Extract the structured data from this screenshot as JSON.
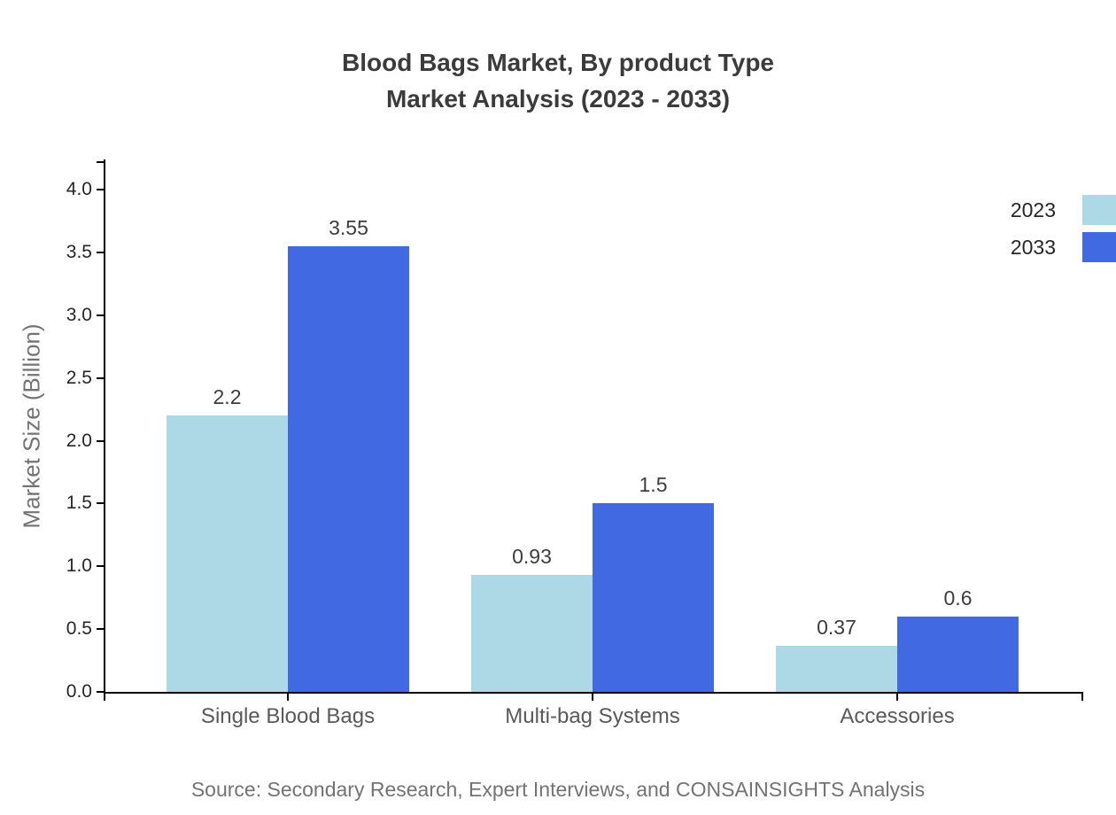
{
  "title": {
    "line1": "Blood Bags Market, By product Type",
    "line2": "Market Analysis (2023 - 2033)"
  },
  "source_note": "Source: Secondary Research, Expert Interviews, and CONSAINSIGHTS Analysis",
  "colors": {
    "series_2023": "#ADD8E6",
    "series_2033": "#4169E1",
    "axis": "#000000",
    "title_text": "#3B3B3B",
    "tick_label": "#262626",
    "category_label": "#595959",
    "value_label": "#3D3D3D",
    "muted_text": "#737373"
  },
  "chart_data": {
    "type": "bar",
    "title": "Blood Bags Market, By product Type - Market Analysis (2023 - 2033)",
    "categories": [
      "Single Blood Bags",
      "Multi-bag Systems",
      "Accessories"
    ],
    "series": [
      {
        "name": "2023",
        "color": "#ADD8E6",
        "values": [
          2.2,
          0.93,
          0.37
        ]
      },
      {
        "name": "2033",
        "color": "#4169E1",
        "values": [
          3.55,
          1.5,
          0.6
        ]
      }
    ],
    "xlabel": "",
    "ylabel": "Market Size (Billion)",
    "ylim": [
      0,
      4.25
    ],
    "yticks": [
      0.0,
      0.5,
      1.0,
      1.5,
      2.0,
      2.5,
      3.0,
      3.5,
      4.0
    ],
    "grid": false,
    "legend_position": "right",
    "bar_value_labels": true
  }
}
